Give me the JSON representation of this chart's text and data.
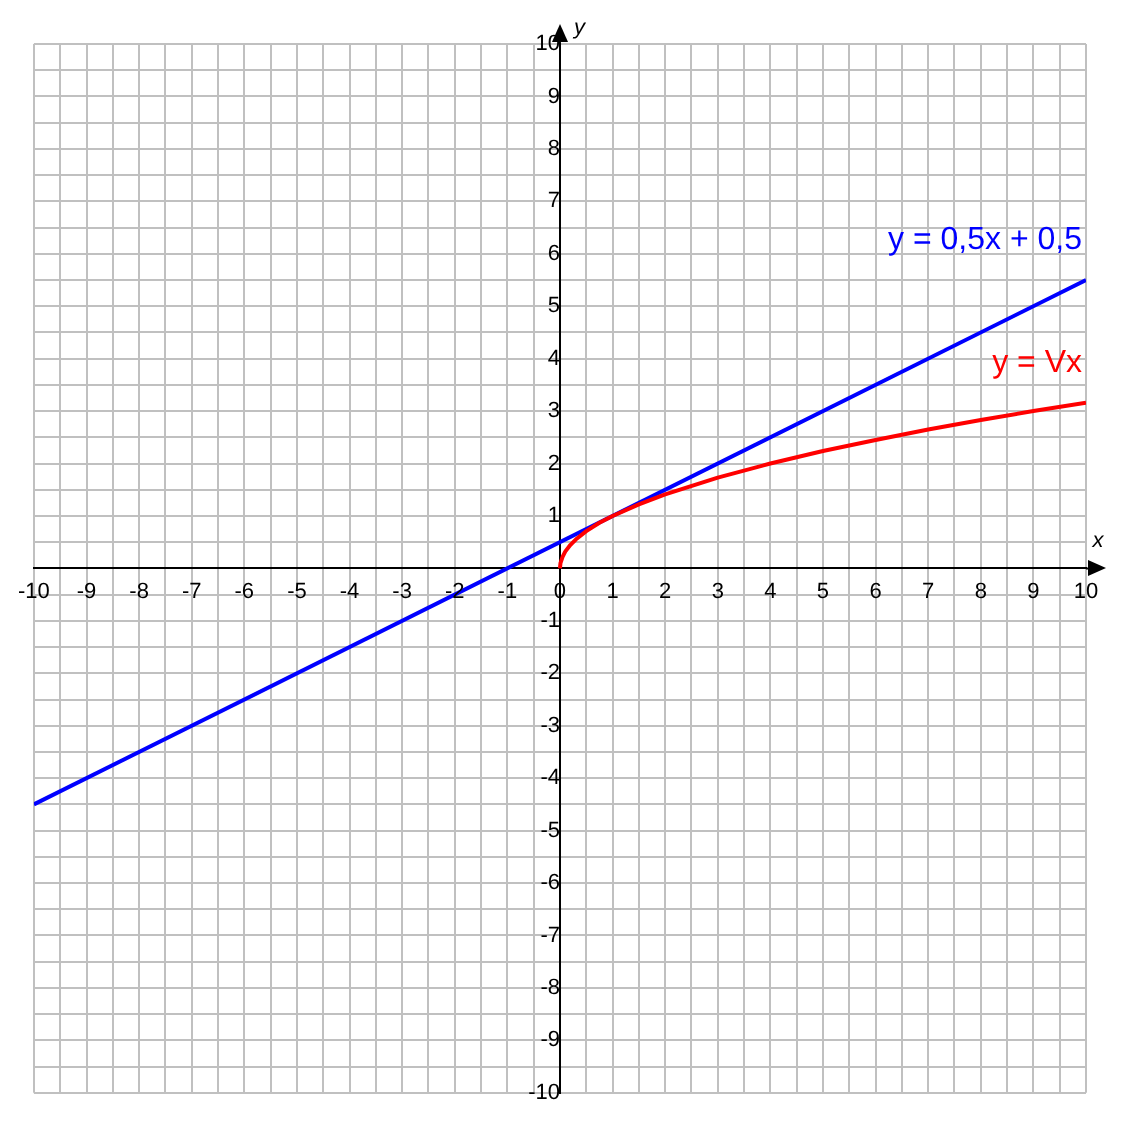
{
  "chart_data": {
    "type": "line",
    "xlabel": "x",
    "ylabel": "y",
    "xlim": [
      -10,
      10
    ],
    "ylim": [
      -10,
      10
    ],
    "xticks": [
      -10,
      {
        "value": -9.5,
        "label": null
      },
      -9,
      {
        "value": -8.5,
        "label": null
      },
      -8,
      {
        "value": -7.5,
        "label": null
      },
      -7,
      {
        "value": -6.5,
        "label": null
      },
      -6,
      {
        "value": -5.5,
        "label": null
      },
      -5,
      {
        "value": -4.5,
        "label": null
      },
      -4,
      {
        "value": -3.5,
        "label": null
      },
      -3,
      {
        "value": -2.5,
        "label": null
      },
      -2,
      {
        "value": -1.5,
        "label": null
      },
      -1,
      {
        "value": -0.5,
        "label": null
      },
      0,
      {
        "value": 0.5,
        "label": null
      },
      1,
      {
        "value": 1.5,
        "label": null
      },
      2,
      {
        "value": 2.5,
        "label": null
      },
      3,
      {
        "value": 3.5,
        "label": null
      },
      4,
      {
        "value": 4.5,
        "label": null
      },
      5,
      {
        "value": 5.5,
        "label": null
      },
      6,
      {
        "value": 6.5,
        "label": null
      },
      7,
      {
        "value": 7.5,
        "label": null
      },
      8,
      {
        "value": 8.5,
        "label": null
      },
      9,
      {
        "value": 9.5,
        "label": null
      },
      10
    ],
    "yticks": [
      -10,
      {
        "value": -9.5,
        "label": null
      },
      -9,
      {
        "value": -8.5,
        "label": null
      },
      -8,
      {
        "value": -7.5,
        "label": null
      },
      -7,
      {
        "value": -6.5,
        "label": null
      },
      -6,
      {
        "value": -5.5,
        "label": null
      },
      -5,
      {
        "value": -4.5,
        "label": null
      },
      -4,
      {
        "value": -3.5,
        "label": null
      },
      -3,
      {
        "value": -2.5,
        "label": null
      },
      -2,
      {
        "value": -1.5,
        "label": null
      },
      -1,
      {
        "value": -0.5,
        "label": null
      },
      {
        "value": 0,
        "label": null
      },
      {
        "value": 0.5,
        "label": null
      },
      1,
      {
        "value": 1.5,
        "label": null
      },
      2,
      {
        "value": 2.5,
        "label": null
      },
      3,
      {
        "value": 3.5,
        "label": null
      },
      4,
      {
        "value": 4.5,
        "label": null
      },
      5,
      {
        "value": 5.5,
        "label": null
      },
      6,
      {
        "value": 6.5,
        "label": null
      },
      7,
      {
        "value": 7.5,
        "label": null
      },
      8,
      {
        "value": 8.5,
        "label": null
      },
      9,
      {
        "value": 9.5,
        "label": null
      },
      10
    ],
    "grid": true,
    "legend": false,
    "marker": "none",
    "line_style": "solid",
    "series": [
      {
        "name": "y = 0,5x + 0,5",
        "color": "#0000ff",
        "x": [
          -10,
          10
        ],
        "values": [
          -4.5,
          5.5
        ]
      },
      {
        "name": "y = Vx",
        "color": "#ff0000",
        "x": [
          0,
          0.01,
          0.05,
          0.1,
          0.2,
          0.3,
          0.5,
          0.75,
          1,
          1.5,
          2,
          3,
          4,
          5,
          6,
          7,
          8,
          9,
          10
        ],
        "values": [
          0,
          0.1,
          0.22,
          0.32,
          0.45,
          0.55,
          0.71,
          0.87,
          1,
          1.22,
          1.41,
          1.73,
          2,
          2.24,
          2.45,
          2.65,
          2.83,
          3,
          3.16
        ]
      }
    ]
  }
}
